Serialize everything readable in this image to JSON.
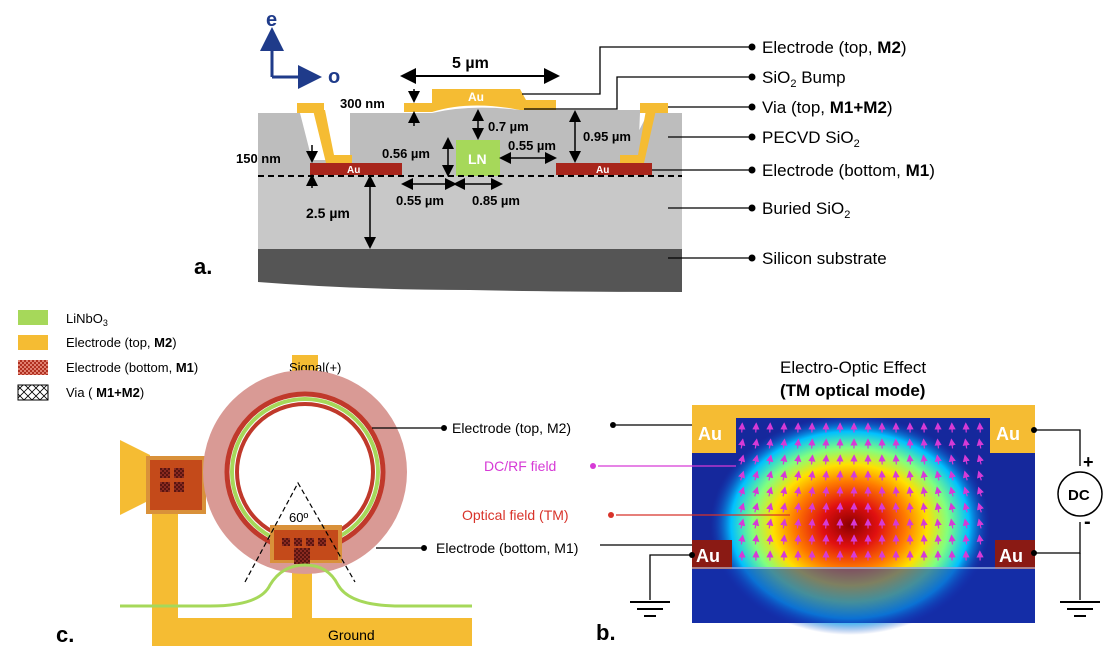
{
  "panel_a": {
    "panel_label": "a.",
    "axes": {
      "e": "e",
      "o": "o"
    },
    "dims": {
      "width_5um": "5 µm",
      "h_300nm": "300 nm",
      "h_0_7um": "0.7 µm",
      "h_0_95um": "0.95 µm",
      "h_150nm": "150 nm",
      "h_0_56um": "0.56 µm",
      "gap_0_55um_right": "0.55 µm",
      "w_0_55um_bottom": "0.55 µm",
      "w_0_85um_bottom": "0.85 µm",
      "h_2_5um": "2.5 µm"
    },
    "ln_label": "LN",
    "au_label": "Au",
    "callouts": {
      "electrode_top": {
        "text": "Electrode (top, ",
        "bold": "M2",
        "end": ")"
      },
      "sio2_bump": {
        "pre": "SiO",
        "sub": "2",
        "post": " Bump"
      },
      "via_top": {
        "text": "Via (top, ",
        "bold": "M1+M2",
        "end": ")"
      },
      "pecvd": {
        "pre": "PECVD SiO",
        "sub": "2"
      },
      "electrode_bottom": {
        "text": "Electrode (bottom, ",
        "bold": "M1",
        "end": ")"
      },
      "buried": {
        "pre": "Buried SiO",
        "sub": "2"
      },
      "substrate": "Silicon substrate"
    }
  },
  "legend": {
    "linbo3": {
      "pre": "LiNbO",
      "sub": "3"
    },
    "top": {
      "text": "Electrode (top, ",
      "bold": "M2",
      "end": ")"
    },
    "bottom": {
      "text": "Electrode (bottom, ",
      "bold": "M1",
      "end": ")"
    },
    "via": {
      "text": "Via ( ",
      "bold": "M1+M2",
      "end": ")"
    },
    "colors": {
      "linbo3": "#a6d85a",
      "top": "#f5bc33",
      "bottom": "#c0392b"
    }
  },
  "panel_c": {
    "panel_label": "c.",
    "signal": "Signal(+)",
    "angle": "60º",
    "ground": "Ground",
    "callout_top": "Electrode (top, M2)",
    "callout_bottom": "Electrode (bottom, M1)"
  },
  "panel_b": {
    "panel_label": "b.",
    "title": "Electro-Optic Effect",
    "subtitle": "(TM optical mode)",
    "au": "Au",
    "dc": "DC",
    "plus": "+",
    "minus": "-",
    "dcrf_field": "DC/RF field",
    "optical_field": "Optical field (TM)",
    "colors": {
      "dcrf": "#d63ad6",
      "optical": "#d8332a"
    }
  }
}
